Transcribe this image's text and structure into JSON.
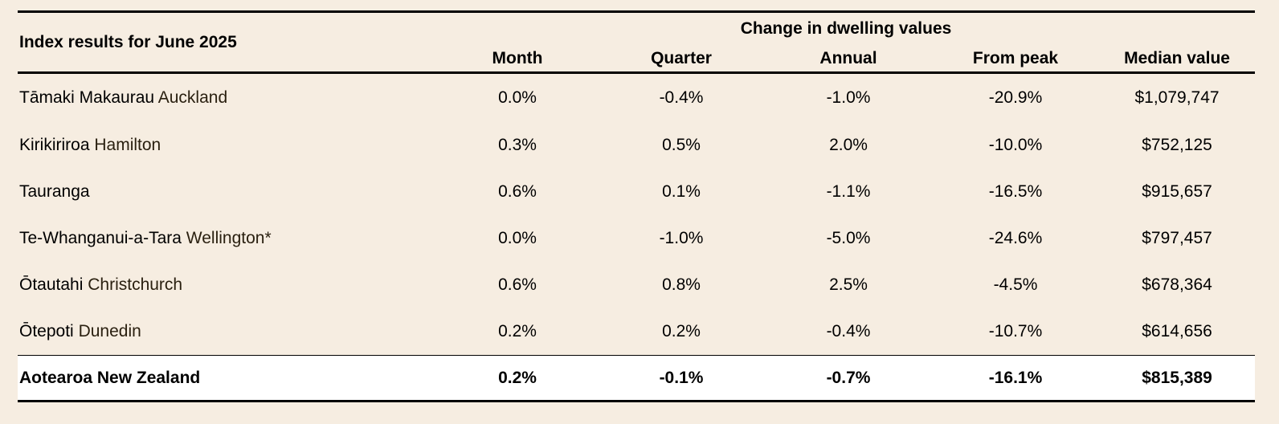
{
  "table": {
    "title": "Index results for June 2025",
    "group_header": "Change in dwelling values",
    "columns": [
      "Month",
      "Quarter",
      "Annual",
      "From peak",
      "Median value"
    ],
    "rows": [
      {
        "maori": "Tāmaki Makaurau",
        "english": "Auckland",
        "month": "0.0%",
        "quarter": "-0.4%",
        "annual": "-1.0%",
        "from_peak": "-20.9%",
        "median": "$1,079,747"
      },
      {
        "maori": "Kirikiriroa",
        "english": "Hamilton",
        "month": "0.3%",
        "quarter": "0.5%",
        "annual": "2.0%",
        "from_peak": "-10.0%",
        "median": "$752,125"
      },
      {
        "maori": "Tauranga",
        "english": "",
        "month": "0.6%",
        "quarter": "0.1%",
        "annual": "-1.1%",
        "from_peak": "-16.5%",
        "median": "$915,657"
      },
      {
        "maori": "Te-Whanganui-a-Tara",
        "english": "Wellington*",
        "month": "0.0%",
        "quarter": "-1.0%",
        "annual": "-5.0%",
        "from_peak": "-24.6%",
        "median": "$797,457"
      },
      {
        "maori": "Ōtautahi",
        "english": "Christchurch",
        "month": "0.6%",
        "quarter": "0.8%",
        "annual": "2.5%",
        "from_peak": "-4.5%",
        "median": "$678,364"
      },
      {
        "maori": "Ōtepoti",
        "english": "Dunedin",
        "month": "0.2%",
        "quarter": "0.2%",
        "annual": "-0.4%",
        "from_peak": "-10.7%",
        "median": "$614,656"
      }
    ],
    "total": {
      "label": "Aotearoa New Zealand",
      "month": "0.2%",
      "quarter": "-0.1%",
      "annual": "-0.7%",
      "from_peak": "-16.1%",
      "median": "$815,389"
    }
  }
}
